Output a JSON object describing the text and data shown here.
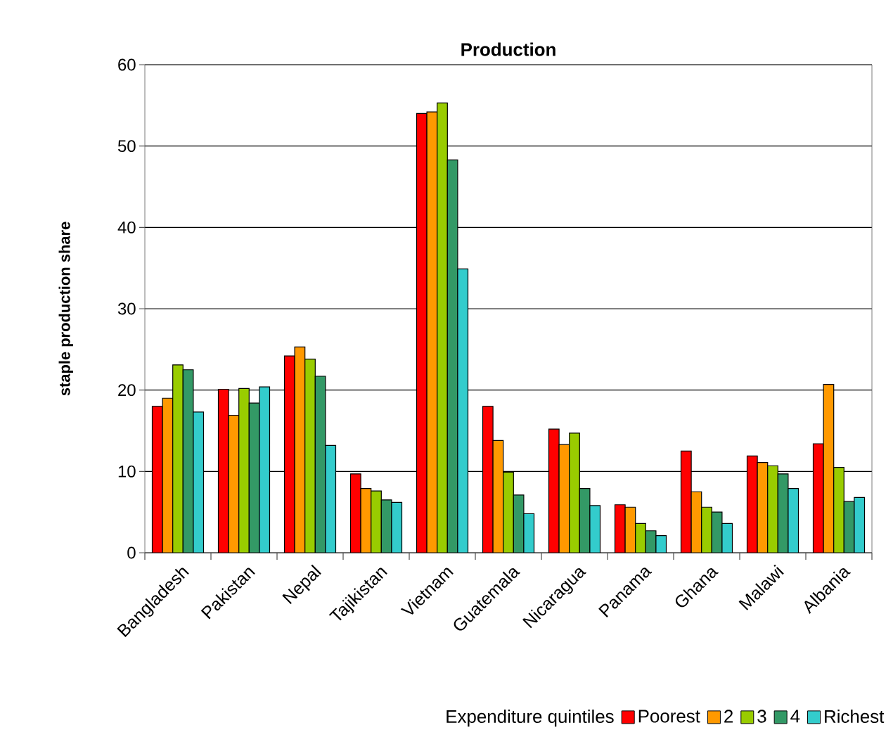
{
  "chart_data": {
    "type": "bar",
    "title": "Production",
    "ylabel": "staple production share",
    "legend_title": "Expenditure quintiles",
    "categories": [
      "Bangladesh",
      "Pakistan",
      "Nepal",
      "Tajikistan",
      "Vietnam",
      "Guatemala",
      "Nicaragua",
      "Panama",
      "Ghana",
      "Malawi",
      "Albania"
    ],
    "series": [
      {
        "name": "Poorest",
        "color": "#ff0000",
        "values": [
          18.0,
          20.1,
          24.2,
          9.7,
          54.0,
          18.0,
          15.2,
          5.9,
          12.5,
          11.9,
          13.4
        ]
      },
      {
        "name": "2",
        "color": "#ff9900",
        "values": [
          19.0,
          16.9,
          25.3,
          7.9,
          54.2,
          13.8,
          13.3,
          5.6,
          7.5,
          11.1,
          20.7
        ]
      },
      {
        "name": "3",
        "color": "#99cc00",
        "values": [
          23.1,
          20.2,
          23.8,
          7.6,
          55.3,
          9.9,
          14.7,
          3.6,
          5.6,
          10.7,
          10.5
        ]
      },
      {
        "name": "4",
        "color": "#339966",
        "values": [
          22.5,
          18.4,
          21.7,
          6.5,
          48.3,
          7.1,
          7.9,
          2.7,
          5.0,
          9.7,
          6.3
        ]
      },
      {
        "name": "Richest",
        "color": "#33cccc",
        "values": [
          17.3,
          20.4,
          13.2,
          6.2,
          34.9,
          4.8,
          5.8,
          2.1,
          3.6,
          7.9,
          6.8
        ]
      }
    ],
    "ylim": [
      0,
      60
    ],
    "yticks": [
      0,
      10,
      20,
      30,
      40,
      50,
      60
    ],
    "grid": "y",
    "legend": "bottom"
  }
}
